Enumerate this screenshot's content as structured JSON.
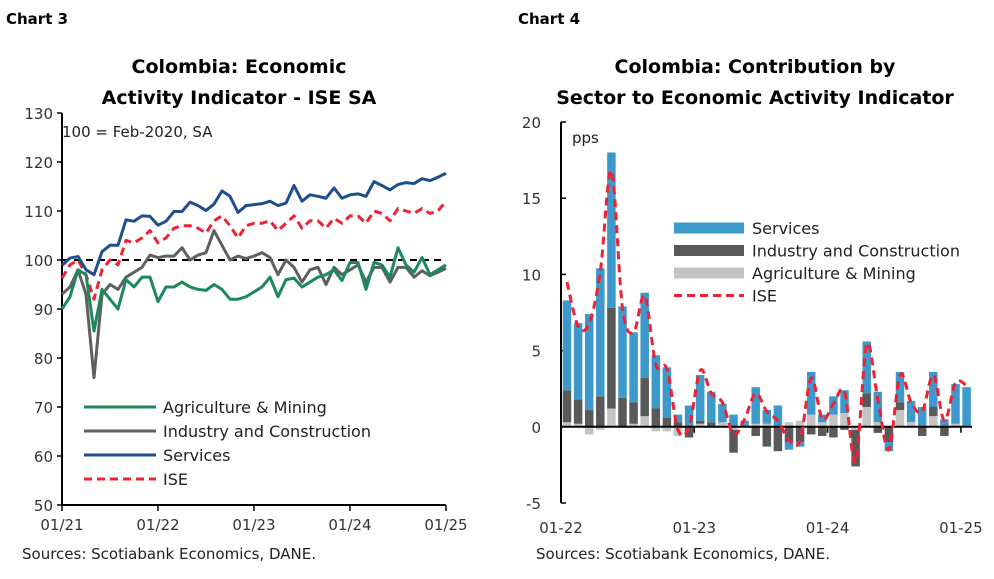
{
  "chart_data": [
    {
      "type": "line",
      "label": "Chart 3",
      "title_lines": [
        "Colombia: Economic",
        "Activity Indicator - ISE SA"
      ],
      "annotation": "100 = Feb-2020, SA",
      "source": "Sources: Scotiabank Economics, DANE.",
      "ylim": [
        50,
        130
      ],
      "yticks": [
        50,
        60,
        70,
        80,
        90,
        100,
        110,
        120,
        130
      ],
      "xtick_labels": [
        "01/21",
        "01/22",
        "01/23",
        "01/24",
        "01/25"
      ],
      "x_start": "01/21",
      "x_end": "01/25",
      "reference_line": 100,
      "legend_position": "bottom-left",
      "series": [
        {
          "name": "Agriculture & Mining",
          "color": "#1a8a5a",
          "style": "solid",
          "values": [
            90,
            92.5,
            98,
            97,
            85.5,
            94,
            92,
            90,
            96,
            94.5,
            96.5,
            96.5,
            91.5,
            94.5,
            94.5,
            95.5,
            94.5,
            94,
            93.8,
            95,
            94,
            92,
            92,
            92.5,
            93.5,
            94.5,
            96.5,
            92.5,
            96,
            96.3,
            94.5,
            95.5,
            96.5,
            97,
            98,
            95.8,
            99.5,
            99.5,
            94,
            99.5,
            99,
            96.5,
            102.5,
            99,
            97.5,
            100.5,
            97,
            98,
            99
          ]
        },
        {
          "name": "Industry and Construction",
          "color": "#5f5f5f",
          "style": "solid",
          "values": [
            93,
            94.5,
            98,
            93,
            76,
            93,
            95,
            94,
            96.5,
            97.5,
            98.5,
            101,
            100.5,
            100.8,
            100.8,
            102.5,
            100,
            101,
            101.5,
            106,
            103,
            100,
            100.8,
            100.3,
            100.8,
            101.5,
            100.5,
            97,
            100,
            98.5,
            95.5,
            98,
            98.5,
            95,
            98.5,
            97,
            98,
            99,
            95.5,
            98.5,
            98.5,
            95.5,
            98.5,
            98.5,
            96.5,
            97.8,
            96.8,
            97.5,
            98.3
          ]
        },
        {
          "name": "Services",
          "color": "#1f4e8c",
          "style": "solid",
          "values": [
            98.9,
            100.4,
            100.7,
            98,
            97,
            101.7,
            103,
            103,
            108.2,
            107.9,
            109,
            108.9,
            107.1,
            107.9,
            109.9,
            109.9,
            111.8,
            111.1,
            110.1,
            111.4,
            114.1,
            113,
            109.7,
            111.1,
            111.3,
            111.5,
            112,
            111.1,
            111.6,
            115.2,
            112,
            113.3,
            113,
            112.6,
            114.7,
            112.6,
            113.3,
            113.5,
            113,
            116,
            115.2,
            114.3,
            115.4,
            115.8,
            115.6,
            116.6,
            116.2,
            116.9,
            117.7
          ]
        },
        {
          "name": "ISE",
          "color": "#ee2233",
          "style": "dashed",
          "values": [
            96.3,
            99,
            100,
            97,
            92,
            98,
            100,
            99,
            104,
            103.5,
            104.5,
            106,
            103.5,
            104.5,
            106.5,
            107,
            107,
            106.5,
            105.5,
            108,
            109,
            107,
            104.5,
            107,
            107.5,
            107.5,
            108,
            106,
            107.5,
            109,
            106.5,
            108,
            108,
            106.5,
            108.5,
            107.5,
            109,
            109,
            107.5,
            110,
            109.5,
            108,
            110.5,
            110,
            109.5,
            110.5,
            109.5,
            110,
            112
          ]
        }
      ]
    },
    {
      "type": "bar",
      "stacked": true,
      "label": "Chart 4",
      "title_lines": [
        "Colombia: Contribution by",
        "Sector to Economic Activity Indicator"
      ],
      "ylabel": "pps",
      "source": "Sources: Scotiabank Economics, DANE.",
      "ylim": [
        -5,
        20
      ],
      "yticks": [
        -5,
        0,
        5,
        10,
        15,
        20
      ],
      "xtick_labels": [
        "01-22",
        "01-23",
        "01-24",
        "01-25"
      ],
      "legend_position": "center-right",
      "categories": [
        "01-22",
        "02-22",
        "03-22",
        "04-22",
        "05-22",
        "06-22",
        "07-22",
        "08-22",
        "09-22",
        "10-22",
        "11-22",
        "12-22",
        "01-23",
        "02-23",
        "03-23",
        "04-23",
        "05-23",
        "06-23",
        "07-23",
        "08-23",
        "09-23",
        "10-23",
        "11-23",
        "12-23",
        "01-24",
        "02-24",
        "03-24",
        "04-24",
        "05-24",
        "06-24",
        "07-24",
        "08-24",
        "09-24",
        "10-24",
        "11-24",
        "12-24",
        "01-25"
      ],
      "series": [
        {
          "name": "Services",
          "color": "#3d99cc",
          "values": [
            5.9,
            5.0,
            6.3,
            8.4,
            10.2,
            6.0,
            4.6,
            5.6,
            3.5,
            3.3,
            0.5,
            1.4,
            3.0,
            2.0,
            1.2,
            0.8,
            0.4,
            2.4,
            0.9,
            1.4,
            -0.5,
            -0.3,
            2.8,
            0.5,
            1.2,
            1.5,
            0,
            3.4,
            2.0,
            -0.6,
            2.0,
            1.4,
            1.3,
            2.3,
            0.5,
            2.6,
            2.6
          ]
        },
        {
          "name": "Industry and Construction",
          "color": "#595959",
          "values": [
            2.1,
            1.6,
            1.1,
            2.0,
            6.6,
            1.9,
            1.4,
            2.5,
            1.2,
            0.6,
            0.3,
            -0.7,
            0.2,
            0.3,
            0,
            -1.5,
            0,
            -0.6,
            -1.3,
            -1.6,
            -1.0,
            -1.0,
            -0.5,
            -0.6,
            -0.7,
            -0.2,
            -2.4,
            0.9,
            -0.4,
            -1.0,
            0.5,
            0,
            -0.6,
            0.6,
            -0.6,
            0,
            0
          ]
        },
        {
          "name": "Agriculture & Mining",
          "color": "#c4c4c4",
          "values": [
            0.3,
            0.2,
            -0.5,
            -0.2,
            1.2,
            0,
            0.2,
            0.7,
            -0.3,
            -0.3,
            -0.6,
            0,
            0.2,
            0,
            0.3,
            -0.2,
            0,
            0.2,
            0.2,
            0,
            0.3,
            0.4,
            0.8,
            0.3,
            0.8,
            0.9,
            -0.2,
            1.3,
            0.3,
            0,
            1.1,
            0.3,
            0,
            0.7,
            0,
            0.2,
            0
          ]
        },
        {
          "name": "ISE",
          "color": "#ee2233",
          "type": "line",
          "style": "dashed",
          "values": [
            9.5,
            6.6,
            6.8,
            10.2,
            16.8,
            7.8,
            6.2,
            8.6,
            4.1,
            3.8,
            -0.2,
            0,
            3.7,
            2.2,
            1.6,
            -0.5,
            0.5,
            2.2,
            1.0,
            0.4,
            -0.9,
            -0.9,
            3.2,
            0.5,
            1.5,
            2.3,
            -2.3,
            5.4,
            1.8,
            -1.5,
            3.4,
            1.6,
            1.0,
            3.4,
            0.4,
            2.9,
            2.7
          ]
        }
      ]
    }
  ]
}
